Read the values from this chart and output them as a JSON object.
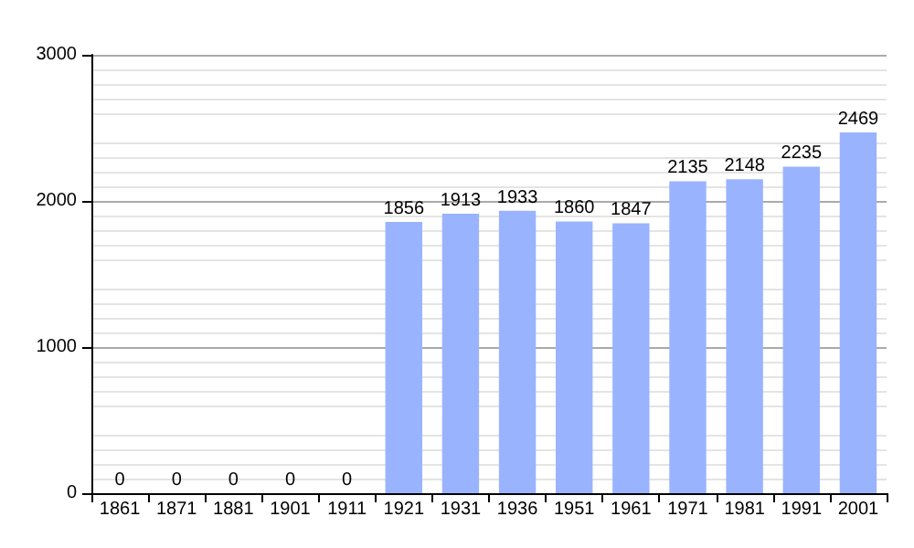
{
  "chart_data": {
    "type": "bar",
    "categories": [
      "1861",
      "1871",
      "1881",
      "1901",
      "1911",
      "1921",
      "1931",
      "1936",
      "1951",
      "1961",
      "1971",
      "1981",
      "1991",
      "2001"
    ],
    "values": [
      0,
      0,
      0,
      0,
      0,
      1856,
      1913,
      1933,
      1860,
      1847,
      2135,
      2148,
      2235,
      2469
    ],
    "color": "#99b3ff",
    "ylim": [
      0,
      3000
    ],
    "yticks": [
      0,
      1000,
      2000,
      3000
    ],
    "grid": "y",
    "data_labels": true
  }
}
